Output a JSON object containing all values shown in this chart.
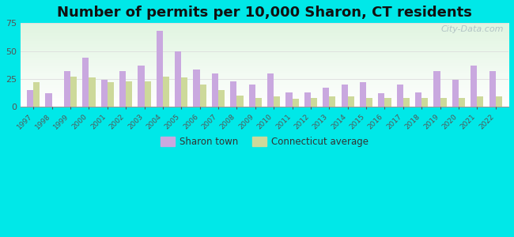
{
  "title": "Number of permits per 10,000 Sharon, CT residents",
  "years": [
    1997,
    1998,
    1999,
    2000,
    2001,
    2002,
    2003,
    2004,
    2005,
    2006,
    2007,
    2008,
    2009,
    2010,
    2011,
    2012,
    2013,
    2014,
    2015,
    2016,
    2017,
    2018,
    2019,
    2020,
    2021,
    2022
  ],
  "sharon": [
    15,
    12,
    32,
    44,
    24,
    32,
    37,
    68,
    50,
    33,
    30,
    23,
    20,
    30,
    13,
    13,
    17,
    20,
    22,
    12,
    20,
    13,
    32,
    24,
    37,
    32
  ],
  "ct_avg": [
    22,
    0,
    27,
    26,
    22,
    23,
    23,
    27,
    26,
    20,
    15,
    10,
    8,
    9,
    7,
    8,
    9,
    9,
    8,
    8,
    8,
    8,
    8,
    8,
    9,
    9
  ],
  "sharon_color": "#c9a8df",
  "ct_color": "#cdd99a",
  "background_outer": "#00e8e8",
  "ylim": [
    0,
    75
  ],
  "yticks": [
    0,
    25,
    50,
    75
  ],
  "title_fontsize": 13,
  "watermark": "City-Data.com",
  "grid_color": "#dddddd",
  "tick_color": "#555555"
}
